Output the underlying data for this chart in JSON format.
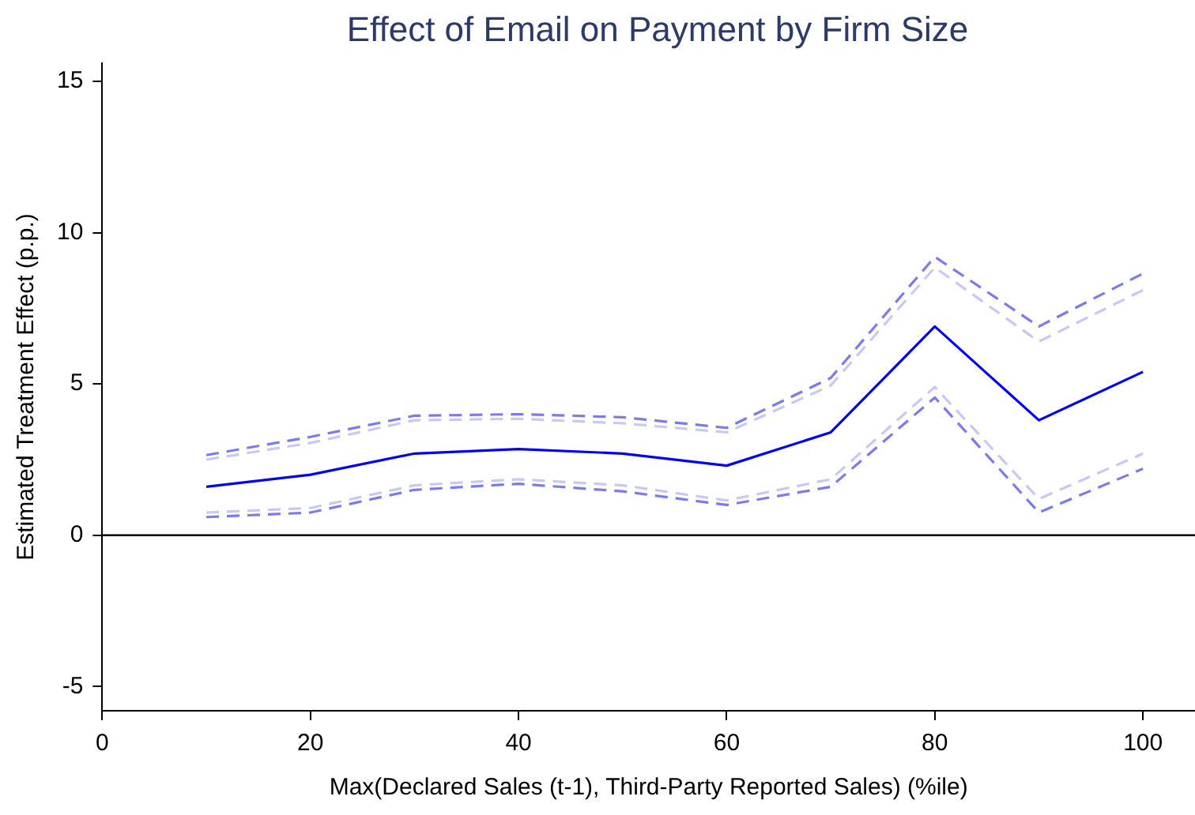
{
  "chart_data": {
    "type": "line",
    "title": "Effect of Email on Payment by Firm Size",
    "xlabel": "Max(Declared Sales (t-1), Third-Party Reported Sales) (%ile)",
    "ylabel": "Estimated Treatment Effect (p.p.)",
    "x": [
      10,
      20,
      30,
      40,
      50,
      60,
      70,
      80,
      90,
      100
    ],
    "series": [
      {
        "color": "#7b7bf0",
        "line_style": "dashed",
        "values": [
          2.65,
          3.25,
          3.95,
          4.0,
          3.9,
          3.55,
          5.2,
          9.2,
          6.9,
          8.65
        ]
      },
      {
        "color": "#c8c8f5",
        "line_style": "dashed",
        "values": [
          2.5,
          3.05,
          3.8,
          3.85,
          3.7,
          3.4,
          4.95,
          8.85,
          6.4,
          8.1
        ]
      },
      {
        "color": "#0000ff",
        "line_style": "solid",
        "values": [
          1.6,
          2.0,
          2.7,
          2.85,
          2.7,
          2.3,
          3.4,
          6.9,
          3.8,
          5.4
        ]
      },
      {
        "color": "#c8c8f5",
        "line_style": "dashed",
        "values": [
          0.75,
          0.9,
          1.65,
          1.85,
          1.65,
          1.15,
          1.85,
          4.9,
          1.2,
          2.7
        ]
      },
      {
        "color": "#7b7bf0",
        "line_style": "dashed",
        "values": [
          0.6,
          0.75,
          1.5,
          1.7,
          1.45,
          1.0,
          1.6,
          4.55,
          0.75,
          2.2
        ]
      }
    ],
    "xlim": [
      0,
      105
    ],
    "xticks": [
      0,
      20,
      40,
      60,
      80,
      100
    ],
    "ylim": [
      -5.8,
      15.6
    ],
    "yticks": [
      -5,
      0,
      5,
      10,
      15
    ],
    "ref_lines": [
      {
        "axis": "y",
        "value": 0,
        "color": "#000000"
      }
    ],
    "grid": false,
    "legend": false,
    "marker": "none"
  }
}
